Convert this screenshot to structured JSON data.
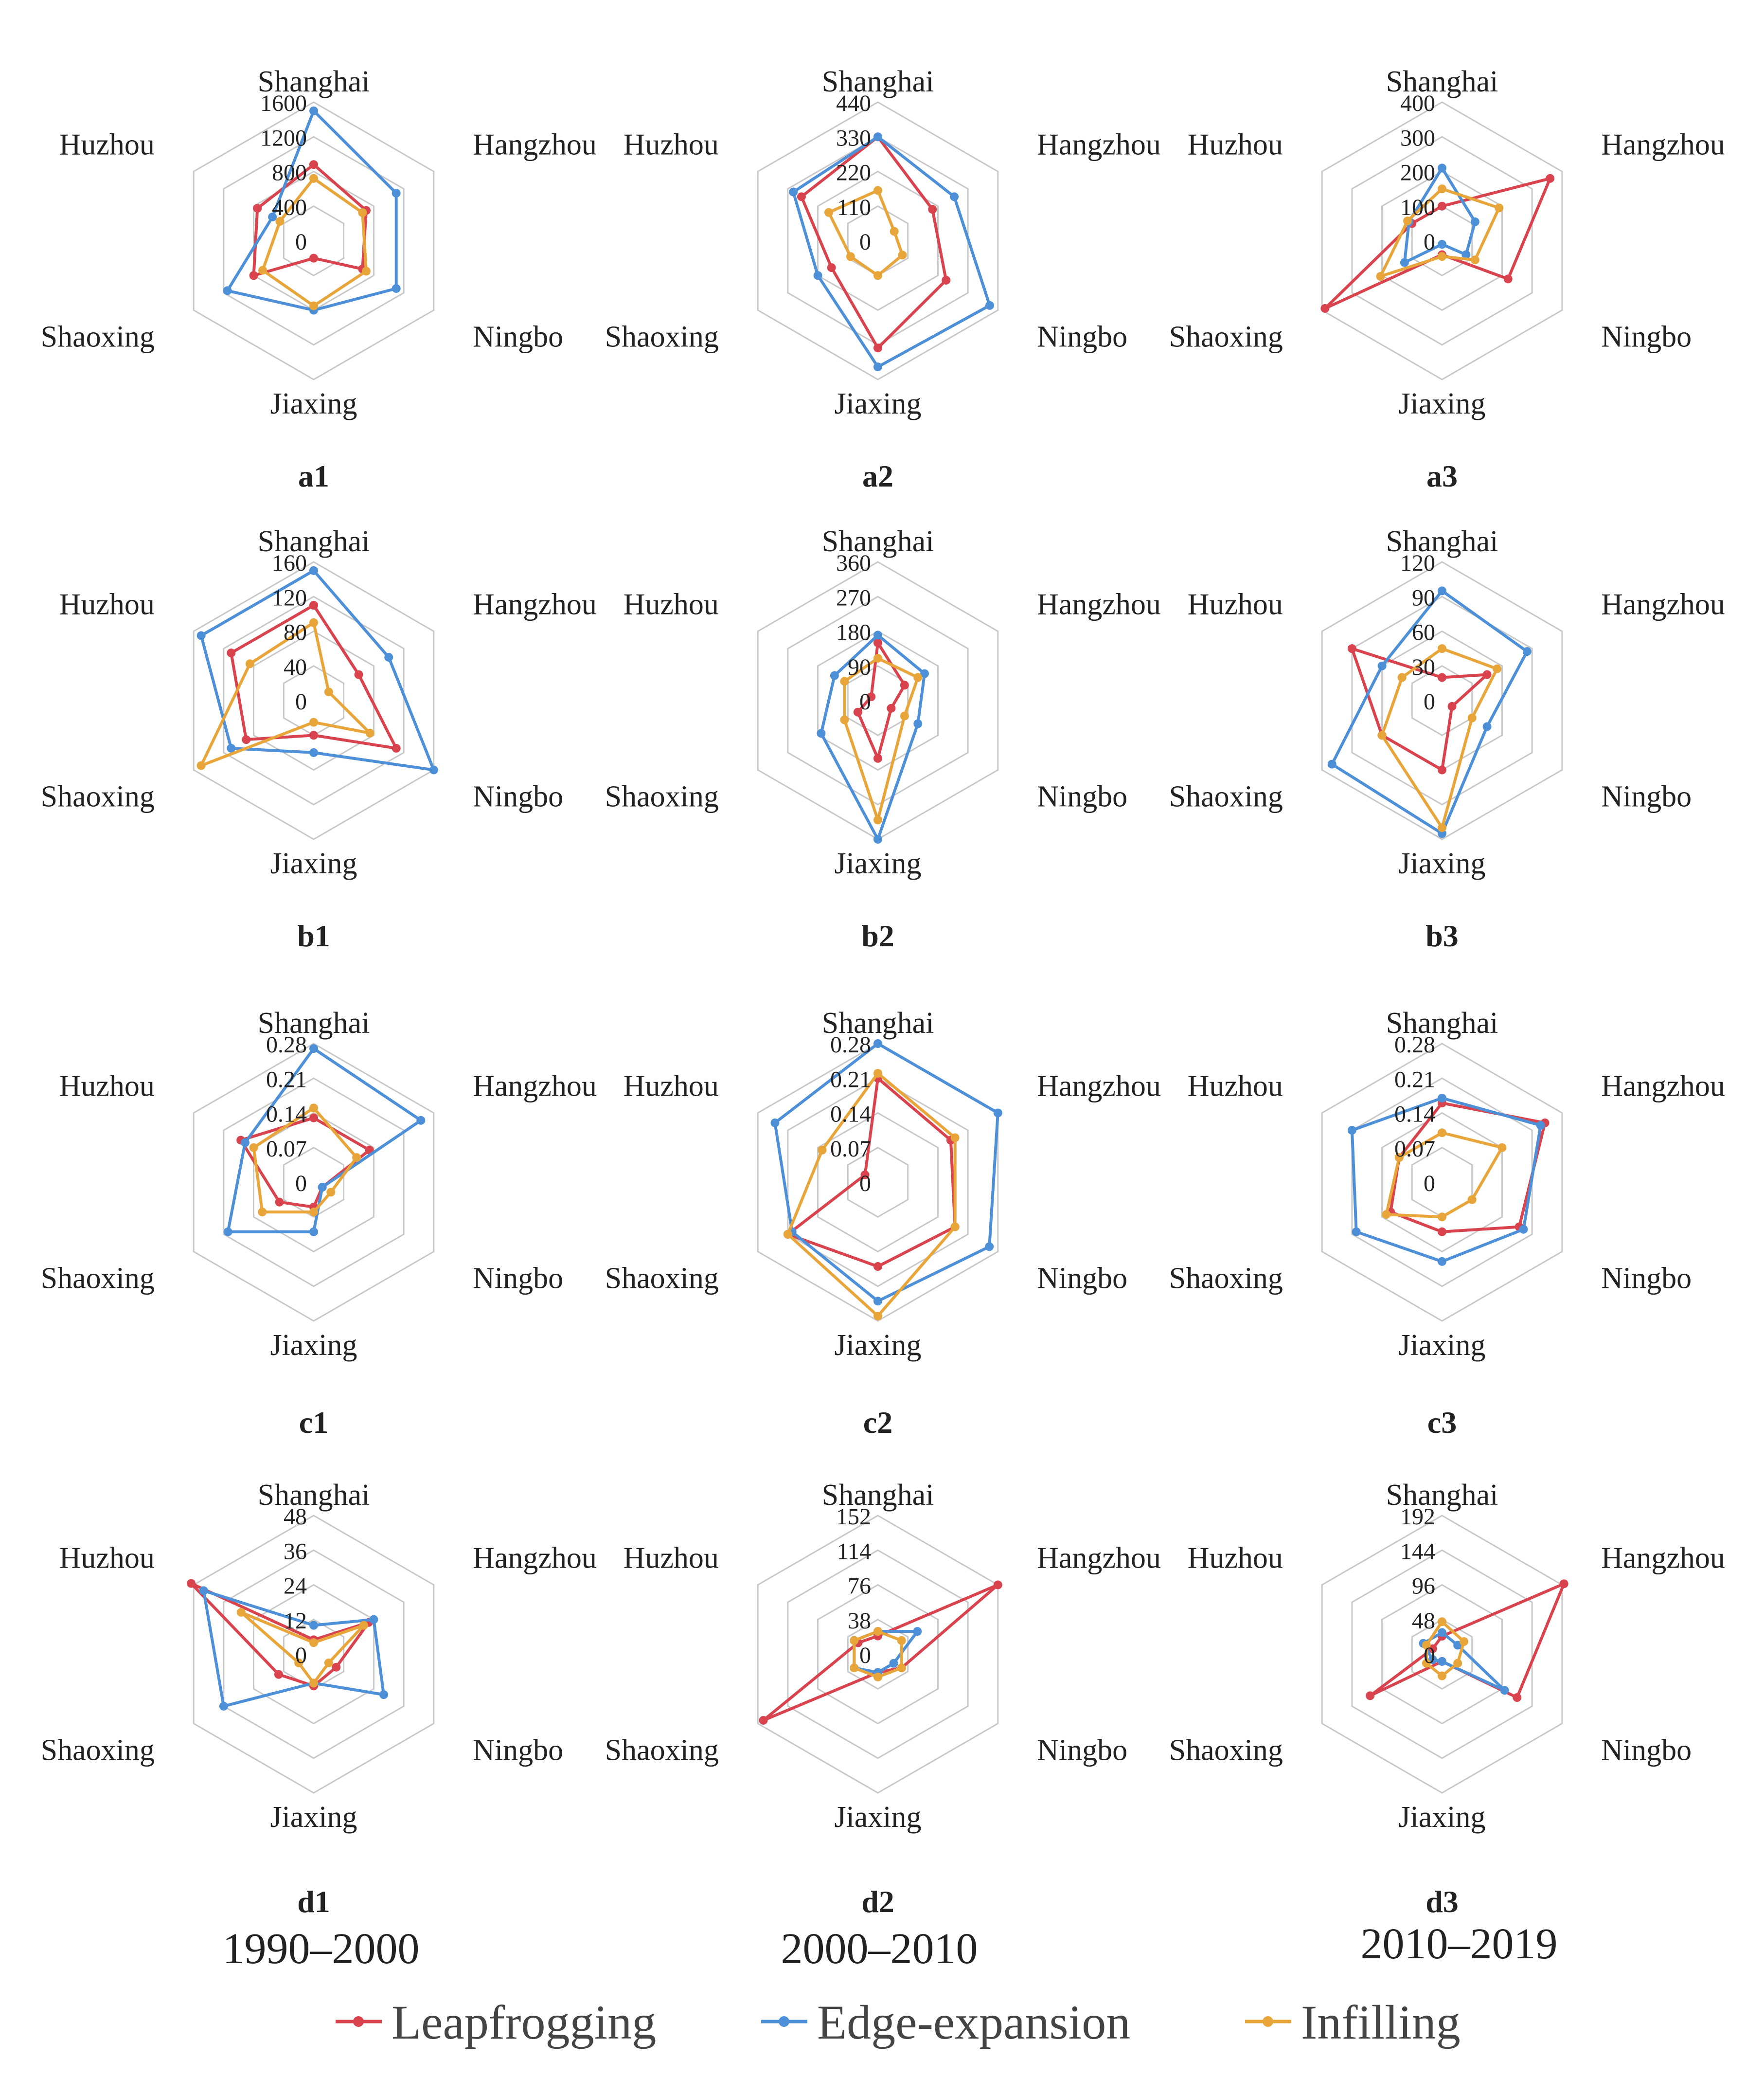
{
  "figure": {
    "axes": [
      "Shanghai",
      "Hangzhou",
      "Ningbo",
      "Jiaxing",
      "Shaoxing",
      "Huzhou"
    ],
    "periods": [
      "1990–2000",
      "2000–2010",
      "2010–2019"
    ],
    "legend": [
      {
        "name": "Leapfrogging",
        "color": "#d9434e"
      },
      {
        "name": "Edge-expansion",
        "color": "#4d90d8"
      },
      {
        "name": "Infilling",
        "color": "#e8a53a"
      }
    ]
  },
  "chart_data": [
    {
      "type": "radar",
      "label": "a1",
      "period": "1990–2000",
      "ylim": [
        0,
        1600
      ],
      "ticks": [
        "1600",
        "1200",
        "800",
        "400",
        "0"
      ],
      "series": [
        {
          "name": "Leapfrogging",
          "values": [
            880,
            700,
            650,
            200,
            800,
            750
          ]
        },
        {
          "name": "Edge-expansion",
          "values": [
            1500,
            1100,
            1100,
            800,
            1150,
            550
          ]
        },
        {
          "name": "Infilling",
          "values": [
            720,
            650,
            700,
            750,
            680,
            450
          ]
        }
      ]
    },
    {
      "type": "radar",
      "label": "a2",
      "period": "2000–2010",
      "ylim": [
        0,
        440
      ],
      "ticks": [
        "440",
        "330",
        "220",
        "110",
        "0"
      ],
      "series": [
        {
          "name": "Leapfrogging",
          "values": [
            330,
            200,
            250,
            340,
            170,
            280
          ]
        },
        {
          "name": "Edge-expansion",
          "values": [
            330,
            280,
            410,
            400,
            220,
            310
          ]
        },
        {
          "name": "Infilling",
          "values": [
            160,
            60,
            90,
            110,
            100,
            180
          ]
        }
      ]
    },
    {
      "type": "radar",
      "label": "a3",
      "period": "2010–2019",
      "ylim": [
        0,
        400
      ],
      "ticks": [
        "400",
        "300",
        "200",
        "100",
        "0"
      ],
      "series": [
        {
          "name": "Leapfrogging",
          "values": [
            100,
            360,
            220,
            40,
            390,
            100
          ]
        },
        {
          "name": "Edge-expansion",
          "values": [
            210,
            110,
            80,
            10,
            125,
            110
          ]
        },
        {
          "name": "Infilling",
          "values": [
            150,
            190,
            110,
            45,
            205,
            115
          ]
        }
      ]
    },
    {
      "type": "radar",
      "label": "b1",
      "period": "1990–2000",
      "ylim": [
        0,
        160
      ],
      "ticks": [
        "160",
        "120",
        "80",
        "40",
        "0"
      ],
      "series": [
        {
          "name": "Leapfrogging",
          "values": [
            110,
            60,
            110,
            40,
            90,
            110
          ]
        },
        {
          "name": "Edge-expansion",
          "values": [
            150,
            100,
            160,
            60,
            110,
            150
          ]
        },
        {
          "name": "Infilling",
          "values": [
            90,
            20,
            75,
            25,
            150,
            85
          ]
        }
      ]
    },
    {
      "type": "radar",
      "label": "b2",
      "period": "2000–2010",
      "ylim": [
        0,
        360
      ],
      "ticks": [
        "360",
        "270",
        "180",
        "90",
        "0"
      ],
      "series": [
        {
          "name": "Leapfrogging",
          "values": [
            150,
            80,
            40,
            150,
            60,
            20
          ]
        },
        {
          "name": "Edge-expansion",
          "values": [
            170,
            140,
            120,
            360,
            170,
            130
          ]
        },
        {
          "name": "Infilling",
          "values": [
            110,
            120,
            80,
            310,
            100,
            100
          ]
        }
      ]
    },
    {
      "type": "radar",
      "label": "b3",
      "period": "2010–2019",
      "ylim": [
        0,
        120
      ],
      "ticks": [
        "120",
        "90",
        "60",
        "30",
        "0"
      ],
      "series": [
        {
          "name": "Leapfrogging",
          "values": [
            20,
            45,
            10,
            60,
            60,
            90
          ]
        },
        {
          "name": "Edge-expansion",
          "values": [
            95,
            85,
            45,
            115,
            110,
            60
          ]
        },
        {
          "name": "Infilling",
          "values": [
            45,
            55,
            30,
            110,
            60,
            40
          ]
        }
      ]
    },
    {
      "type": "radar",
      "label": "c1",
      "period": "1990–2000",
      "ylim": [
        0,
        0.28
      ],
      "ticks": [
        "0.28",
        "0.21",
        "0.14",
        "0.07",
        "0"
      ],
      "series": [
        {
          "name": "Leapfrogging",
          "values": [
            0.13,
            0.13,
            0.02,
            0.05,
            0.08,
            0.17
          ]
        },
        {
          "name": "Edge-expansion",
          "values": [
            0.27,
            0.25,
            0.02,
            0.1,
            0.2,
            0.16
          ]
        },
        {
          "name": "Infilling",
          "values": [
            0.15,
            0.1,
            0.04,
            0.06,
            0.12,
            0.14
          ]
        }
      ]
    },
    {
      "type": "radar",
      "label": "c2",
      "period": "2000–2010",
      "ylim": [
        0,
        0.28
      ],
      "ticks": [
        "0.28",
        "0.21",
        "0.14",
        "0.07",
        "0"
      ],
      "series": [
        {
          "name": "Leapfrogging",
          "values": [
            0.21,
            0.17,
            0.18,
            0.17,
            0.21,
            0.03
          ]
        },
        {
          "name": "Edge-expansion",
          "values": [
            0.28,
            0.28,
            0.26,
            0.24,
            0.2,
            0.24
          ]
        },
        {
          "name": "Infilling",
          "values": [
            0.22,
            0.18,
            0.18,
            0.27,
            0.21,
            0.13
          ]
        }
      ]
    },
    {
      "type": "radar",
      "label": "c3",
      "period": "2010–2019",
      "ylim": [
        0,
        0.28
      ],
      "ticks": [
        "0.28",
        "0.21",
        "0.14",
        "0.07",
        "0"
      ],
      "series": [
        {
          "name": "Leapfrogging",
          "values": [
            0.16,
            0.24,
            0.18,
            0.1,
            0.12,
            0.1
          ]
        },
        {
          "name": "Edge-expansion",
          "values": [
            0.17,
            0.23,
            0.19,
            0.16,
            0.2,
            0.21
          ]
        },
        {
          "name": "Infilling",
          "values": [
            0.1,
            0.14,
            0.07,
            0.07,
            0.13,
            0.1
          ]
        }
      ]
    },
    {
      "type": "radar",
      "label": "d1",
      "period": "1990–2000",
      "ylim": [
        0,
        48
      ],
      "ticks": [
        "48",
        "36",
        "24",
        "12",
        "0"
      ],
      "series": [
        {
          "name": "Leapfrogging",
          "values": [
            5,
            22,
            9,
            11,
            14,
            49
          ]
        },
        {
          "name": "Edge-expansion",
          "values": [
            10,
            24,
            28,
            10,
            36,
            44
          ]
        },
        {
          "name": "Infilling",
          "values": [
            4,
            20,
            6,
            10,
            6,
            29
          ]
        }
      ]
    },
    {
      "type": "radar",
      "label": "d2",
      "period": "2000–2010",
      "ylim": [
        0,
        152
      ],
      "ticks": [
        "152",
        "114",
        "76",
        "38",
        "0"
      ],
      "series": [
        {
          "name": "Leapfrogging",
          "values": [
            20,
            152,
            30,
            20,
            145,
            25
          ]
        },
        {
          "name": "Edge-expansion",
          "values": [
            25,
            50,
            20,
            20,
            30,
            30
          ]
        },
        {
          "name": "Infilling",
          "values": [
            25,
            30,
            30,
            25,
            30,
            30
          ]
        }
      ]
    },
    {
      "type": "radar",
      "label": "d3",
      "period": "2010–2019",
      "ylim": [
        0,
        192
      ],
      "ticks": [
        "192",
        "144",
        "96",
        "48",
        "0"
      ],
      "series": [
        {
          "name": "Leapfrogging",
          "values": [
            25,
            195,
            120,
            10,
            115,
            15
          ]
        },
        {
          "name": "Edge-expansion",
          "values": [
            30,
            25,
            100,
            10,
            15,
            30
          ]
        },
        {
          "name": "Infilling",
          "values": [
            45,
            35,
            25,
            30,
            25,
            25
          ]
        }
      ]
    }
  ]
}
